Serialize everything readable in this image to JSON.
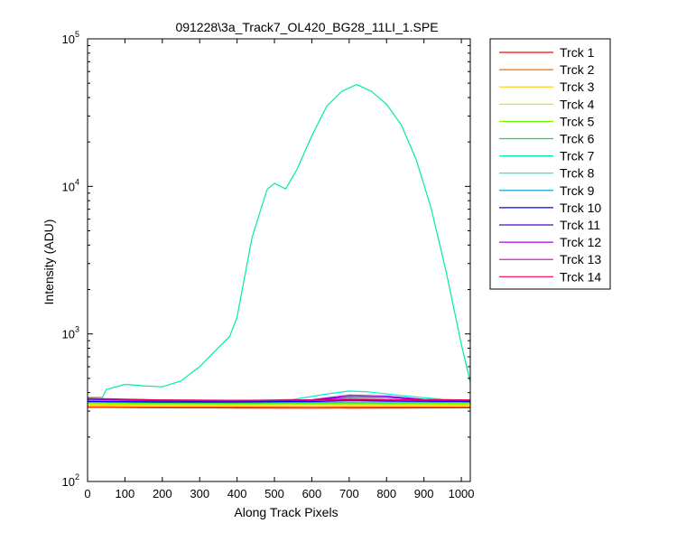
{
  "chart_data": {
    "type": "line",
    "title": "091228\\3a_Track7_OL420_BG28_11LI_1.SPE",
    "xlabel": "Along Track Pixels",
    "ylabel": "Intensity (ADU)",
    "xlim": [
      0,
      1024
    ],
    "ylim": [
      100,
      100000
    ],
    "yscale": "log",
    "grid": false,
    "legend_position": "outside-right-top",
    "x_ticks": [
      "0",
      "100",
      "200",
      "300",
      "400",
      "500",
      "600",
      "700",
      "800",
      "900",
      "1000"
    ],
    "y_ticks": [
      {
        "base": "10",
        "exp": "2"
      },
      {
        "base": "10",
        "exp": "3"
      },
      {
        "base": "10",
        "exp": "4"
      },
      {
        "base": "10",
        "exp": "5"
      }
    ],
    "series": [
      {
        "name": "Trck 1",
        "color": "#ff0000",
        "points": [
          [
            0,
            318
          ],
          [
            200,
            316
          ],
          [
            400,
            315
          ],
          [
            600,
            314
          ],
          [
            800,
            315
          ],
          [
            1024,
            316
          ]
        ]
      },
      {
        "name": "Trck 2",
        "color": "#ff6a00",
        "points": [
          [
            0,
            322
          ],
          [
            200,
            320
          ],
          [
            400,
            320
          ],
          [
            600,
            319
          ],
          [
            800,
            320
          ],
          [
            1024,
            321
          ]
        ]
      },
      {
        "name": "Trck 3",
        "color": "#ffcc00",
        "points": [
          [
            0,
            330
          ],
          [
            200,
            327
          ],
          [
            400,
            326
          ],
          [
            600,
            326
          ],
          [
            800,
            327
          ],
          [
            1024,
            328
          ]
        ]
      },
      {
        "name": "Trck 4",
        "color": "#d4e600",
        "points": [
          [
            0,
            336
          ],
          [
            200,
            333
          ],
          [
            400,
            332
          ],
          [
            600,
            333
          ],
          [
            800,
            333
          ],
          [
            1024,
            334
          ]
        ]
      },
      {
        "name": "Trck 5",
        "color": "#66ff00",
        "points": [
          [
            0,
            340
          ],
          [
            200,
            338
          ],
          [
            400,
            337
          ],
          [
            600,
            338
          ],
          [
            800,
            338
          ],
          [
            1024,
            339
          ]
        ]
      },
      {
        "name": "Trck 6",
        "color": "#00e640",
        "points": [
          [
            0,
            345
          ],
          [
            200,
            342
          ],
          [
            400,
            341
          ],
          [
            600,
            343
          ],
          [
            800,
            342
          ],
          [
            1024,
            344
          ]
        ]
      },
      {
        "name": "Trck 7",
        "color": "#00ee99",
        "points": [
          [
            0,
            372
          ],
          [
            40,
            372
          ],
          [
            50,
            420
          ],
          [
            100,
            455
          ],
          [
            150,
            445
          ],
          [
            200,
            438
          ],
          [
            250,
            480
          ],
          [
            300,
            600
          ],
          [
            340,
            760
          ],
          [
            380,
            960
          ],
          [
            400,
            1300
          ],
          [
            440,
            4500
          ],
          [
            480,
            9500
          ],
          [
            500,
            10500
          ],
          [
            530,
            9600
          ],
          [
            560,
            13000
          ],
          [
            600,
            22000
          ],
          [
            640,
            35000
          ],
          [
            680,
            44000
          ],
          [
            720,
            49000
          ],
          [
            760,
            44000
          ],
          [
            800,
            36000
          ],
          [
            840,
            26000
          ],
          [
            880,
            15000
          ],
          [
            920,
            7000
          ],
          [
            960,
            2600
          ],
          [
            1000,
            850
          ],
          [
            1024,
            470
          ]
        ]
      },
      {
        "name": "Trck 8",
        "color": "#00eecc",
        "points": [
          [
            0,
            355
          ],
          [
            200,
            352
          ],
          [
            400,
            352
          ],
          [
            550,
            360
          ],
          [
            650,
            395
          ],
          [
            700,
            410
          ],
          [
            750,
            405
          ],
          [
            850,
            380
          ],
          [
            950,
            360
          ],
          [
            1024,
            355
          ]
        ]
      },
      {
        "name": "Trck 9",
        "color": "#0099cc",
        "points": [
          [
            0,
            350
          ],
          [
            200,
            348
          ],
          [
            400,
            348
          ],
          [
            600,
            352
          ],
          [
            700,
            365
          ],
          [
            800,
            360
          ],
          [
            900,
            352
          ],
          [
            1024,
            350
          ]
        ]
      },
      {
        "name": "Trck 10",
        "color": "#0000ff",
        "points": [
          [
            0,
            348
          ],
          [
            200,
            346
          ],
          [
            400,
            346
          ],
          [
            600,
            348
          ],
          [
            700,
            352
          ],
          [
            800,
            350
          ],
          [
            1024,
            348
          ]
        ]
      },
      {
        "name": "Trck 11",
        "color": "#5500cc",
        "points": [
          [
            0,
            360
          ],
          [
            200,
            352
          ],
          [
            400,
            350
          ],
          [
            600,
            355
          ],
          [
            700,
            375
          ],
          [
            800,
            372
          ],
          [
            900,
            356
          ],
          [
            1024,
            352
          ]
        ]
      },
      {
        "name": "Trck 12",
        "color": "#aa00ee",
        "points": [
          [
            0,
            362
          ],
          [
            200,
            354
          ],
          [
            400,
            352
          ],
          [
            600,
            358
          ],
          [
            700,
            385
          ],
          [
            800,
            380
          ],
          [
            900,
            360
          ],
          [
            1024,
            354
          ]
        ]
      },
      {
        "name": "Trck 13",
        "color": "#dd00aa",
        "points": [
          [
            0,
            364
          ],
          [
            200,
            356
          ],
          [
            400,
            354
          ],
          [
            600,
            356
          ],
          [
            700,
            360
          ],
          [
            800,
            358
          ],
          [
            1024,
            356
          ]
        ]
      },
      {
        "name": "Trck 14",
        "color": "#ee0055",
        "points": [
          [
            0,
            366
          ],
          [
            200,
            357
          ],
          [
            400,
            355
          ],
          [
            600,
            356
          ],
          [
            800,
            356
          ],
          [
            1024,
            357
          ]
        ]
      }
    ]
  }
}
